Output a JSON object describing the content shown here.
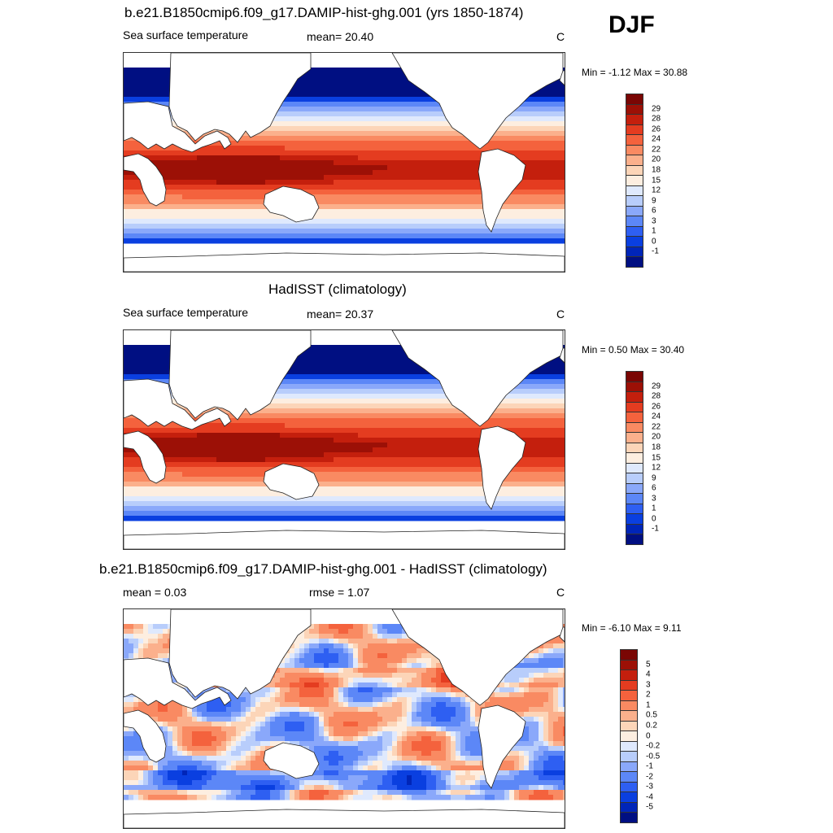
{
  "season": "DJF",
  "colors": {
    "sst": [
      "#000f82",
      "#0025b8",
      "#0a3fe0",
      "#2e5ff2",
      "#5c87f7",
      "#8aa8fa",
      "#b8cdfb",
      "#dfe9fd",
      "#fdeee0",
      "#fcd5b8",
      "#fbb08c",
      "#f98a62",
      "#f4623d",
      "#e43c20",
      "#c41f0d",
      "#9c1006",
      "#7a0604"
    ],
    "diff": [
      "#000f82",
      "#0025b8",
      "#0a3fe0",
      "#2e5ff2",
      "#5c87f7",
      "#8aa8fa",
      "#b8cdfb",
      "#dfe9fd",
      "#fdeee0",
      "#fcd5b8",
      "#fbb08c",
      "#f98a62",
      "#f4623d",
      "#e43c20",
      "#c41f0d",
      "#9c1006",
      "#7a0604"
    ]
  },
  "panels": [
    {
      "title": "b.e21.B1850cmip6.f09_g17.DAMIP-hist-ghg.001 (yrs 1850-1874)",
      "left_label": "Sea surface temperature",
      "center_label": "mean=  20.40",
      "units": "C",
      "minmax": "Min =  -1.12 Max =  30.88",
      "colorbar_labels": [
        "29",
        "28",
        "26",
        "24",
        "22",
        "20",
        "18",
        "15",
        "12",
        "9",
        "6",
        "3",
        "1",
        "0",
        "-1"
      ]
    },
    {
      "title": "HadISST (climatology)",
      "left_label": "Sea surface temperature",
      "center_label": "mean=  20.37",
      "units": "C",
      "minmax": "Min =   0.50 Max =  30.40",
      "colorbar_labels": [
        "29",
        "28",
        "26",
        "24",
        "22",
        "20",
        "18",
        "15",
        "12",
        "9",
        "6",
        "3",
        "1",
        "0",
        "-1"
      ]
    },
    {
      "title": "b.e21.B1850cmip6.f09_g17.DAMIP-hist-ghg.001 - HadISST (climatology)",
      "left_label": "mean =   0.03",
      "center_label": "rmse =   1.07",
      "units": "C",
      "minmax": "Min =  -6.10 Max =   9.11",
      "colorbar_labels": [
        "5",
        "4",
        "3",
        "2",
        "1",
        "0.5",
        "0.2",
        "0",
        "-0.2",
        "-0.5",
        "-1",
        "-2",
        "-3",
        "-4",
        "-5"
      ]
    }
  ],
  "chart_data": [
    {
      "type": "heatmap",
      "title": "b.e21.B1850cmip6.f09_g17.DAMIP-hist-ghg.001 (yrs 1850-1874)",
      "variable": "Sea surface temperature",
      "units": "C",
      "mean": 20.4,
      "min": -1.12,
      "max": 30.88,
      "projection": "cylindrical equidistant, centered on Pacific",
      "contour_levels": [
        -1,
        0,
        1,
        3,
        6,
        9,
        12,
        15,
        18,
        20,
        22,
        24,
        26,
        28,
        29
      ]
    },
    {
      "type": "heatmap",
      "title": "HadISST (climatology)",
      "variable": "Sea surface temperature",
      "units": "C",
      "mean": 20.37,
      "min": 0.5,
      "max": 30.4,
      "projection": "cylindrical equidistant, centered on Pacific",
      "contour_levels": [
        -1,
        0,
        1,
        3,
        6,
        9,
        12,
        15,
        18,
        20,
        22,
        24,
        26,
        28,
        29
      ]
    },
    {
      "type": "heatmap",
      "title": "b.e21.B1850cmip6.f09_g17.DAMIP-hist-ghg.001 - HadISST (climatology)",
      "units": "C",
      "mean": 0.03,
      "rmse": 1.07,
      "min": -6.1,
      "max": 9.11,
      "projection": "cylindrical equidistant, centered on Pacific",
      "contour_levels": [
        -5,
        -4,
        -3,
        -2,
        -1,
        -0.5,
        -0.2,
        0,
        0.2,
        0.5,
        1,
        2,
        3,
        4,
        5
      ]
    }
  ]
}
